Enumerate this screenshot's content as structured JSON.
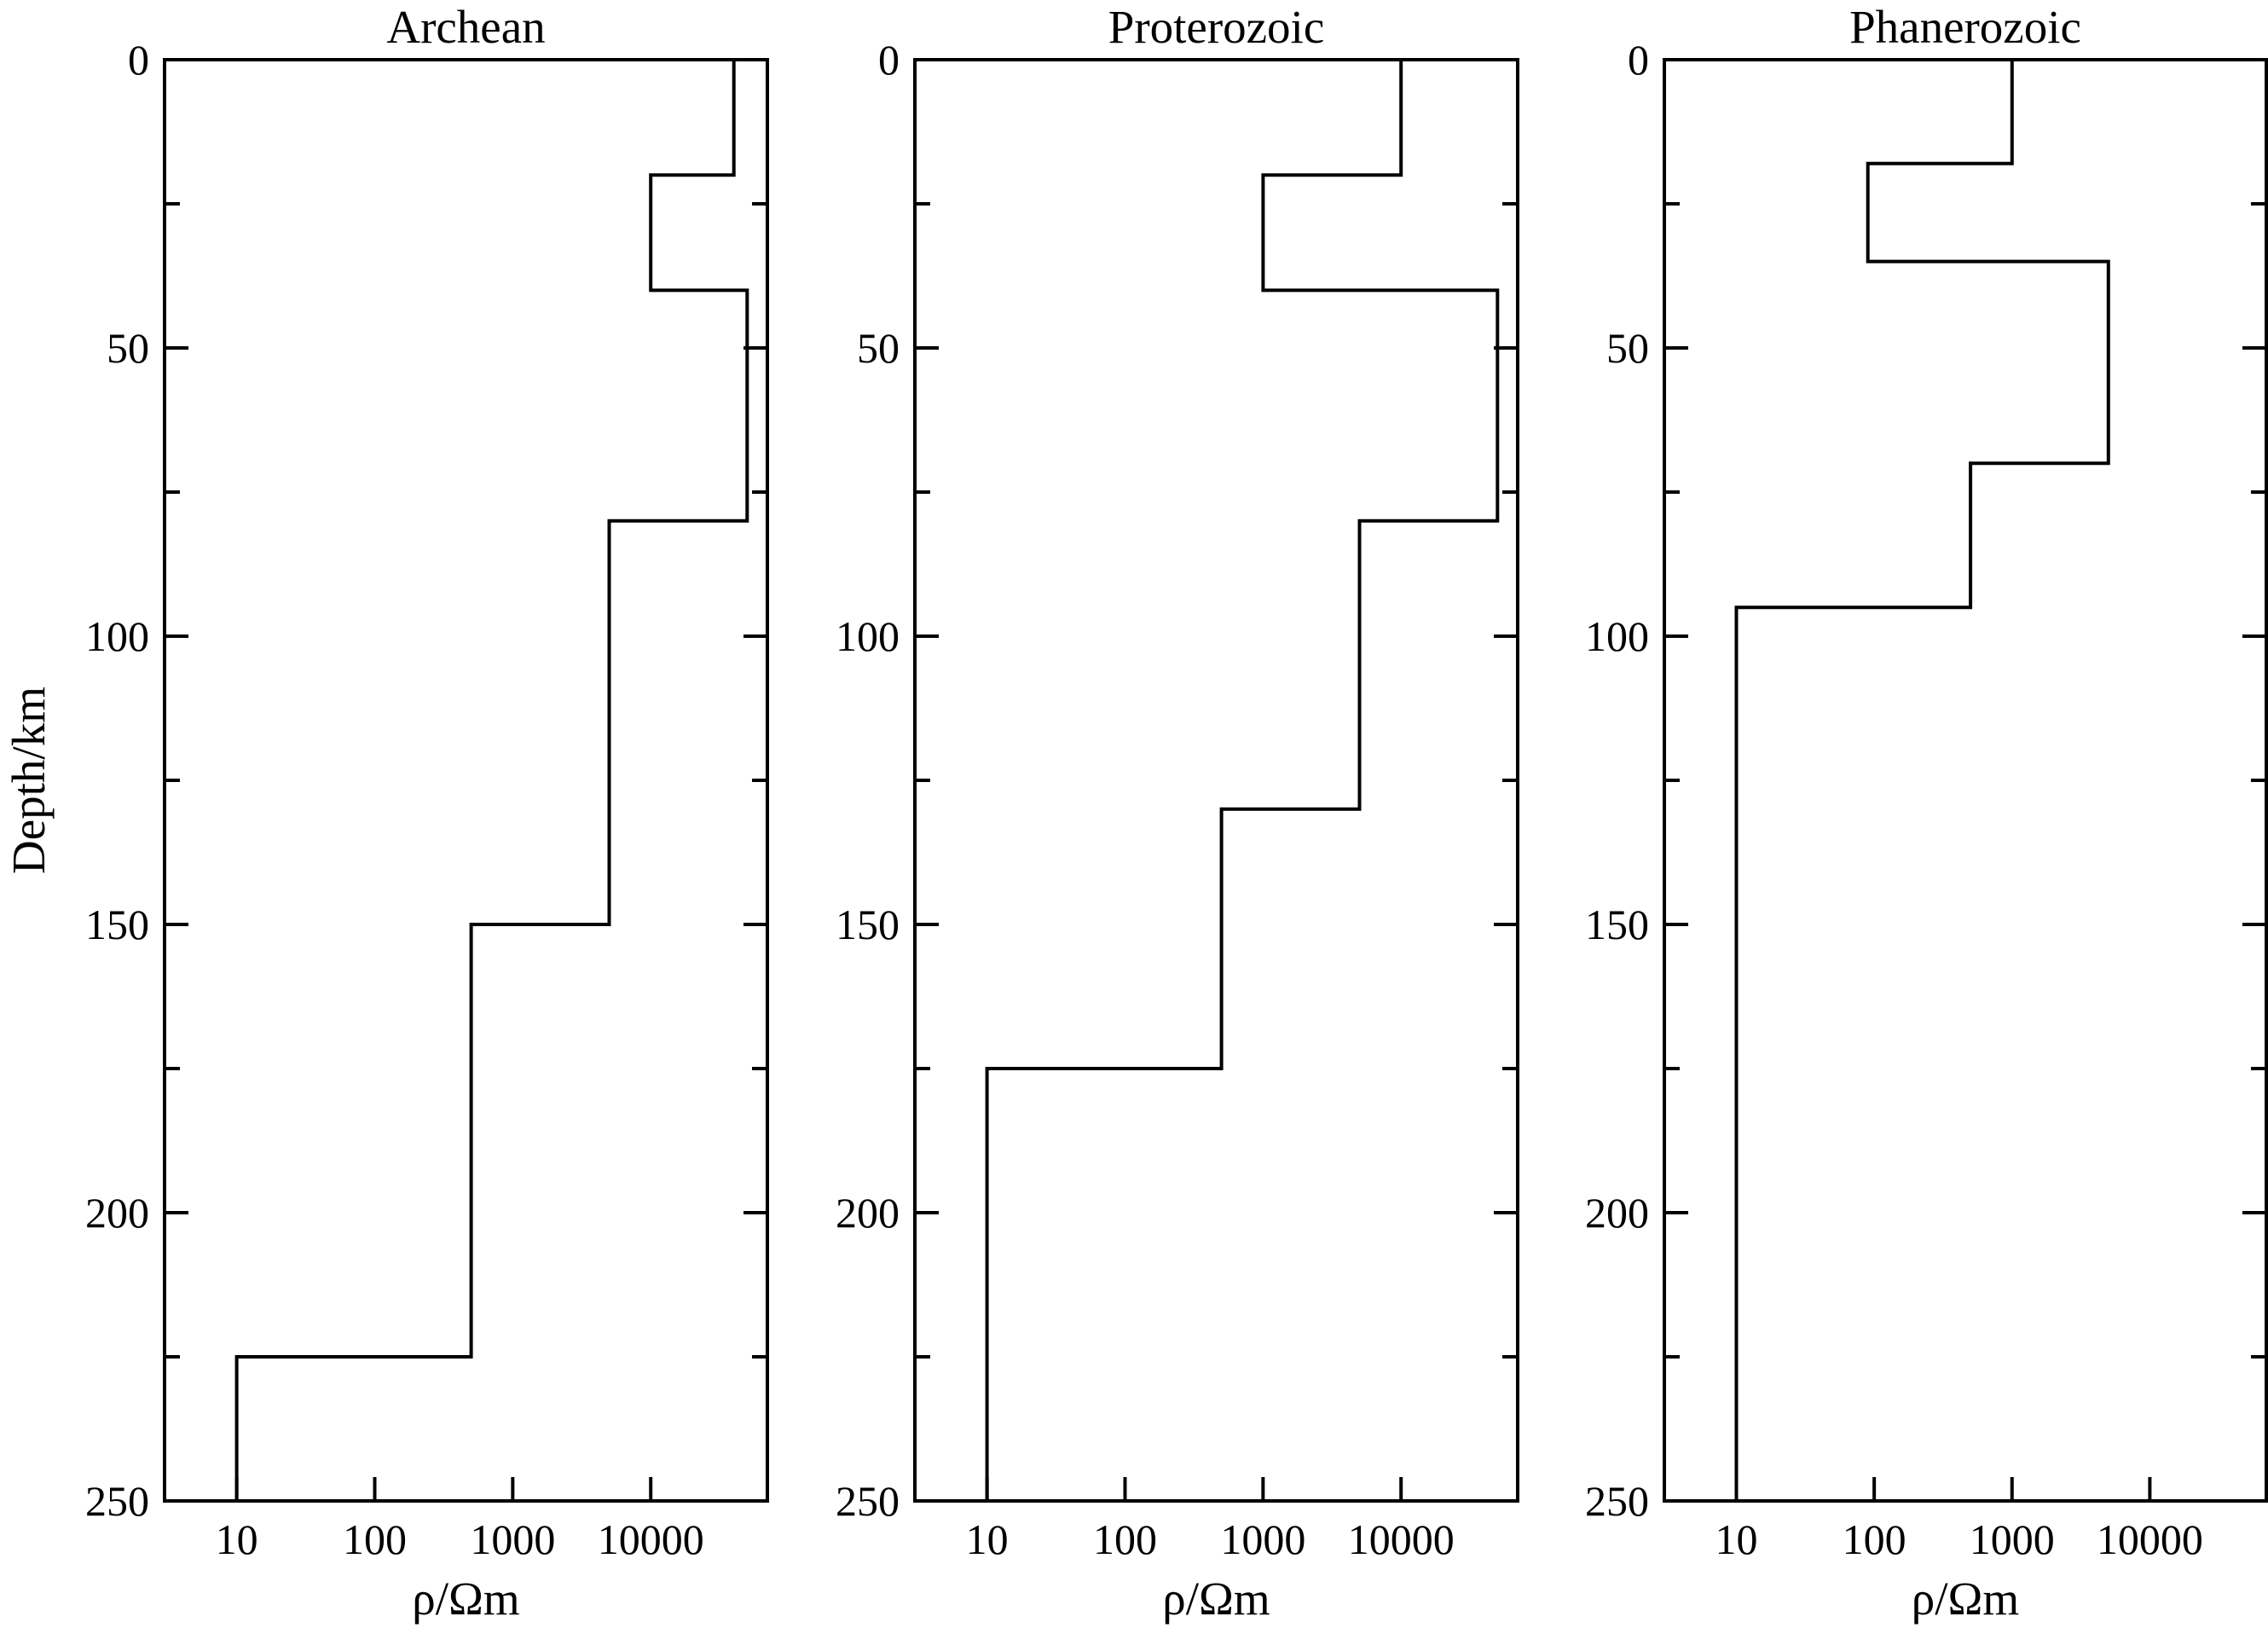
{
  "chart_data": [
    {
      "type": "line",
      "title": "Archean",
      "xlabel": "ρ/Ωm",
      "ylabel": "Depth/km",
      "x_scale": "log",
      "xlim": [
        3,
        70000
      ],
      "ylim": [
        0,
        250
      ],
      "y_inverted": true,
      "xticks": [
        10,
        100,
        1000,
        10000
      ],
      "xtick_labels": [
        "10",
        "100",
        "1000",
        "10000"
      ],
      "yticks": [
        0,
        50,
        100,
        150,
        200,
        250
      ],
      "ytick_labels": [
        "0",
        "50",
        "100",
        "150",
        "200",
        "250"
      ],
      "grid": false,
      "series": [
        {
          "style": "step",
          "layers": [
            {
              "top": 0,
              "bottom": 20,
              "resistivity": 40000
            },
            {
              "top": 20,
              "bottom": 40,
              "resistivity": 10000
            },
            {
              "top": 40,
              "bottom": 80,
              "resistivity": 50000
            },
            {
              "top": 80,
              "bottom": 150,
              "resistivity": 5000
            },
            {
              "top": 150,
              "bottom": 225,
              "resistivity": 500
            },
            {
              "top": 225,
              "bottom": 250,
              "resistivity": 10
            }
          ]
        }
      ]
    },
    {
      "type": "line",
      "title": "Proterozoic",
      "xlabel": "ρ/Ωm",
      "ylabel": "",
      "x_scale": "log",
      "xlim": [
        3,
        70000
      ],
      "ylim": [
        0,
        250
      ],
      "y_inverted": true,
      "xticks": [
        10,
        100,
        1000,
        10000
      ],
      "xtick_labels": [
        "10",
        "100",
        "1000",
        "10000"
      ],
      "yticks": [
        0,
        50,
        100,
        150,
        200,
        250
      ],
      "ytick_labels": [
        "0",
        "50",
        "100",
        "150",
        "200",
        "250"
      ],
      "grid": false,
      "series": [
        {
          "style": "step",
          "layers": [
            {
              "top": 0,
              "bottom": 20,
              "resistivity": 10000
            },
            {
              "top": 20,
              "bottom": 40,
              "resistivity": 1000
            },
            {
              "top": 40,
              "bottom": 80,
              "resistivity": 50000
            },
            {
              "top": 80,
              "bottom": 130,
              "resistivity": 5000
            },
            {
              "top": 130,
              "bottom": 175,
              "resistivity": 500
            },
            {
              "top": 175,
              "bottom": 250,
              "resistivity": 10
            }
          ]
        }
      ]
    },
    {
      "type": "line",
      "title": "Phanerozoic",
      "xlabel": "ρ/Ωm",
      "ylabel": "",
      "x_scale": "log",
      "xlim": [
        3,
        70000
      ],
      "ylim": [
        0,
        250
      ],
      "y_inverted": true,
      "xticks": [
        10,
        100,
        1000,
        10000
      ],
      "xtick_labels": [
        "10",
        "100",
        "1000",
        "10000"
      ],
      "yticks": [
        0,
        50,
        100,
        150,
        200,
        250
      ],
      "ytick_labels": [
        "0",
        "50",
        "100",
        "150",
        "200",
        "250"
      ],
      "grid": false,
      "series": [
        {
          "style": "step",
          "layers": [
            {
              "top": 0,
              "bottom": 18,
              "resistivity": 1000
            },
            {
              "top": 18,
              "bottom": 35,
              "resistivity": 90
            },
            {
              "top": 35,
              "bottom": 70,
              "resistivity": 5000
            },
            {
              "top": 70,
              "bottom": 95,
              "resistivity": 500
            },
            {
              "top": 95,
              "bottom": 250,
              "resistivity": 10
            }
          ]
        }
      ]
    }
  ]
}
